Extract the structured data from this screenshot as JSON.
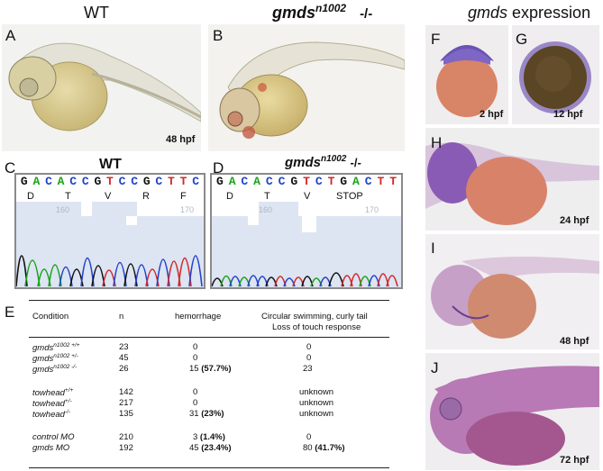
{
  "titles": {
    "wt": "WT",
    "mutant_gene": "gmds",
    "mutant_allele": "n1002",
    "mutant_genotype": "-/-",
    "expression_gene": "gmds",
    "expression_word": "expression"
  },
  "panels": {
    "A": "A",
    "B": "B",
    "C": "C",
    "D": "D",
    "E": "E",
    "F": "F",
    "G": "G",
    "H": "H",
    "I": "I",
    "J": "J"
  },
  "stages": {
    "A": "48 hpf",
    "F": "2 hpf",
    "G": "12  hpf",
    "H": "24 hpf",
    "I": "48 hpf",
    "J": "72 hpf"
  },
  "sequence_wt": {
    "title": "WT",
    "bases": [
      "G",
      "A",
      "C",
      "A",
      "C",
      "C",
      "G",
      "T",
      "C",
      "C",
      "G",
      "C",
      "T",
      "T",
      "C"
    ],
    "base_colors": [
      "#111",
      "#1aa31a",
      "#2244cc",
      "#1aa31a",
      "#2244cc",
      "#2244cc",
      "#111",
      "#d12a2a",
      "#2244cc",
      "#2244cc",
      "#111",
      "#2244cc",
      "#d12a2a",
      "#d12a2a",
      "#2244cc"
    ],
    "amino_acids": [
      "D",
      "T",
      "V",
      "R",
      "F"
    ],
    "position_labels": [
      "160",
      "170"
    ]
  },
  "sequence_mut": {
    "gene": "gmds",
    "allele": "n1002",
    "genotype": "-/-",
    "bases": [
      "G",
      "A",
      "C",
      "A",
      "C",
      "C",
      "G",
      "T",
      "C",
      "T",
      "G",
      "A",
      "C",
      "T",
      "T"
    ],
    "base_colors": [
      "#111",
      "#1aa31a",
      "#2244cc",
      "#1aa31a",
      "#2244cc",
      "#2244cc",
      "#111",
      "#d12a2a",
      "#2244cc",
      "#d12a2a",
      "#111",
      "#1aa31a",
      "#2244cc",
      "#d12a2a",
      "#d12a2a"
    ],
    "amino_acids": [
      "D",
      "T",
      "V",
      "STOP"
    ],
    "position_labels": [
      "160",
      "170"
    ]
  },
  "table": {
    "headers": {
      "condition": "Condition",
      "n": "n",
      "hemorrhage": "hemorrhage",
      "phenotype_line1": "Circular swimming, curly tail",
      "phenotype_line2": "Loss of touch response"
    },
    "rows": [
      {
        "name": "gmds",
        "sup": "n1002 +/+",
        "n": "23",
        "hem": "0",
        "hem_pct": "",
        "phen": "0",
        "phen_pct": ""
      },
      {
        "name": "gmds",
        "sup": "n1002 +/-",
        "n": "45",
        "hem": "0",
        "hem_pct": "",
        "phen": "0",
        "phen_pct": ""
      },
      {
        "name": "gmds",
        "sup": "n1002 -/-",
        "n": "26",
        "hem": "15",
        "hem_pct": "(57.7%)",
        "phen": "23",
        "phen_pct": ""
      },
      {
        "name": "towhead",
        "sup": "+/+",
        "n": "142",
        "hem": "0",
        "hem_pct": "",
        "phen": "unknown",
        "phen_pct": ""
      },
      {
        "name": "towhead",
        "sup": "+/-",
        "n": "217",
        "hem": "0",
        "hem_pct": "",
        "phen": "unknown",
        "phen_pct": ""
      },
      {
        "name": "towhead",
        "sup": "-/-",
        "n": "135",
        "hem": "31",
        "hem_pct": "(23%)",
        "phen": "unknown",
        "phen_pct": ""
      },
      {
        "name": "control MO",
        "sup": "",
        "n": "210",
        "hem": "3",
        "hem_pct": "(1.4%)",
        "phen": "0",
        "phen_pct": ""
      },
      {
        "name": "gmds MO",
        "sup": "",
        "n": "192",
        "hem": "45",
        "hem_pct": "(23.4%)",
        "phen": "80",
        "phen_pct": "(41.7%)"
      }
    ]
  }
}
